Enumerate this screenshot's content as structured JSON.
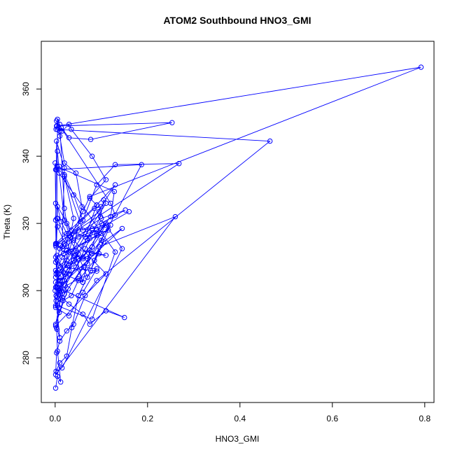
{
  "chart_data": {
    "type": "line",
    "title": "ATOM2 Southbound HNO3_GMI",
    "xlabel": "HNO3_GMI",
    "ylabel": "Theta (K)",
    "xlim": [
      -0.03,
      0.82
    ],
    "ylim": [
      266.7,
      374.2
    ],
    "xticks": [
      0.0,
      0.2,
      0.4,
      0.6,
      0.8
    ],
    "xtick_labels": [
      "0.0",
      "0.2",
      "0.4",
      "0.6",
      "0.8"
    ],
    "yticks": [
      280,
      300,
      320,
      340,
      360
    ],
    "ytick_labels": [
      "280",
      "300",
      "320",
      "340",
      "360"
    ],
    "grid": false,
    "line_color": "#0000ff",
    "marker": "open-circle",
    "series": [
      {
        "x": [
          0.001,
          0.005,
          0.012,
          0.005,
          0.003,
          0.01,
          0.002,
          0.02,
          0.04,
          0.05,
          0.07,
          0.08,
          0.003,
          0.015,
          0.03,
          0.06,
          0.075,
          0.11,
          0.15,
          0.012,
          0.05,
          0.09,
          0.012,
          0.004,
          0.006,
          0.008,
          0.025,
          0.06,
          0.08,
          0.1,
          0.11,
          0.002,
          0.01,
          0.015,
          0.03,
          0.05,
          0.075,
          0.06,
          0.001,
          0.002,
          0.015,
          0.09,
          0.12,
          0.128,
          0.004,
          0.005,
          0.009,
          0.02,
          0.03,
          0.018,
          0.025,
          0.001,
          0.007,
          0.005,
          0.08,
          0.13,
          0.003,
          0.0,
          0.001,
          0.035,
          0.04,
          0.02,
          0.06,
          0.1,
          0.152,
          0.012,
          0.03,
          0.055,
          0.085,
          0.1,
          0.095,
          0.001,
          0.003,
          0.005,
          0.015,
          0.03,
          0.035,
          0.08,
          0.11,
          0.075,
          0.09,
          0.001,
          0.004,
          0.005,
          0.03,
          0.04,
          0.07,
          0.08,
          0.09,
          0.1,
          0.13,
          0.12,
          0.003,
          0.01,
          0.02,
          0.045,
          0.058,
          0.02,
          0.004,
          0.03,
          0.06,
          0.08,
          0.11,
          0.095,
          0.002,
          0.001,
          0.003,
          0.02,
          0.015,
          0.017,
          0.05,
          0.09,
          0.16,
          0.065,
          0.115,
          0.001,
          0.005,
          0.01,
          0.03,
          0.07,
          0.1,
          0.187,
          0.001,
          0.009,
          0.02,
          0.04,
          0.06,
          0.09,
          0.13,
          0.268,
          0.003,
          0.005,
          0.013,
          0.025,
          0.045,
          0.07,
          0.105,
          0.145,
          0.0,
          0.001,
          0.03,
          0.06,
          0.09,
          0.062,
          0.001,
          0.009,
          0.017,
          0.035,
          0.05,
          0.085,
          0.12,
          0.028,
          0.001,
          0.012,
          0.022,
          0.045,
          0.065,
          0.075,
          0.098,
          0.105,
          0.11,
          0.001,
          0.004,
          0.01,
          0.02,
          0.045,
          0.06,
          0.005,
          0.001,
          0.008,
          0.025,
          0.042,
          0.065,
          0.09,
          0.13,
          0.001,
          0.004,
          0.01,
          0.02,
          0.05,
          0.08,
          0.11,
          0.145,
          0.015,
          0.002,
          0.01,
          0.025,
          0.036,
          0.05,
          0.077,
          0.095,
          0.26,
          0.001,
          0.003,
          0.01,
          0.025,
          0.04,
          0.065,
          0.09,
          0.465,
          0.002,
          0.005,
          0.01,
          0.02,
          0.025,
          0.04,
          0.11,
          0.001,
          0.004,
          0.008,
          0.018,
          0.033,
          0.06,
          0.075,
          0.792,
          0.004,
          0.01,
          0.013,
          0.03,
          0.077,
          0.253,
          0.003
        ],
        "y": [
          271.0,
          274.5,
          272.8,
          282.0,
          289.0,
          286.0,
          297.0,
          305.0,
          309.0,
          311.0,
          315.0,
          318.0,
          301.0,
          298.0,
          296.0,
          293.0,
          290.0,
          294.0,
          292.0,
          300.5,
          303.5,
          305.8,
          307.0,
          310.5,
          302.0,
          304.0,
          308.0,
          310.0,
          313.0,
          317.0,
          320.0,
          298.5,
          300.0,
          303.0,
          306.0,
          309.5,
          312.0,
          302.5,
          306.0,
          305.0,
          310.0,
          316.5,
          322.0,
          329.5,
          337.0,
          341.5,
          335.0,
          321.0,
          317.0,
          311.0,
          312.0,
          301.0,
          299.0,
          295.5,
          291.5,
          311.5,
          336.0,
          338.0,
          326.0,
          318.0,
          321.5,
          334.0,
          318.0,
          321.5,
          324.0,
          313.5,
          316.5,
          320.5,
          324.5,
          325.0,
          323.5,
          313.5,
          314.0,
          348.0,
          347.5,
          349.5,
          348.0,
          340.0,
          333.0,
          327.5,
          325.5,
          314.0,
          321.5,
          319.0,
          311.5,
          310.5,
          309.5,
          313.0,
          317.0,
          320.0,
          322.5,
          326.0,
          350.5,
          346.0,
          338.0,
          335.0,
          325.0,
          299.0,
          305.5,
          307.5,
          309.5,
          311.0,
          310.5,
          311.0,
          313.0,
          321.0,
          344.5,
          336.5,
          313.0,
          312.5,
          316.0,
          318.0,
          323.5,
          316.0,
          318.0,
          310.0,
          301.0,
          303.0,
          305.0,
          308.0,
          315.0,
          337.5,
          336.0,
          337.0,
          334.5,
          328.5,
          321.0,
          331.5,
          337.5,
          337.8,
          314.0,
          325.0,
          320.5,
          317.0,
          312.0,
          304.0,
          314.5,
          318.5,
          300.0,
          295.0,
          292.5,
          299.5,
          306.5,
          307.0,
          295.5,
          293.5,
          297.0,
          298.5,
          303.0,
          309.0,
          319.5,
          300.5,
          290.0,
          297.5,
          301.5,
          307.0,
          312.5,
          315.5,
          322.0,
          327.0,
          326.0,
          302.5,
          298.0,
          299.5,
          303.0,
          310.5,
          302.5,
          321.5,
          308.5,
          307.5,
          309.0,
          317.5,
          316.0,
          325.5,
          331.5,
          304.0,
          309.0,
          312.5,
          314.0,
          318.0,
          318.5,
          319.5,
          312.5,
          277.0,
          276.0,
          278.5,
          280.5,
          289.0,
          298.5,
          306.0,
          313.0,
          322.0,
          275.0,
          281.5,
          285.0,
          288.0,
          290.0,
          298.5,
          303.0,
          344.5,
          348.0,
          351.0,
          349.5,
          324.5,
          320.0,
          315.0,
          305.0,
          289.5,
          288.5,
          295.0,
          305.5,
          316.0,
          323.5,
          328.0,
          366.5,
          349.0,
          347.5,
          348.5,
          345.5,
          345.0,
          350.0,
          349.0
        ]
      }
    ]
  }
}
